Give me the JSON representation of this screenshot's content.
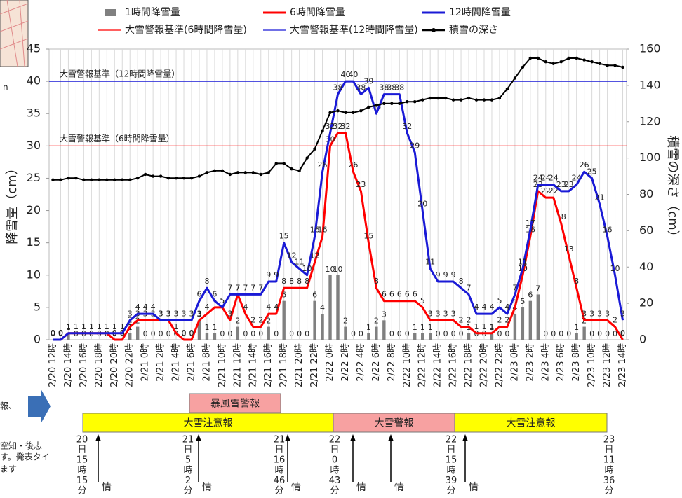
{
  "chart_data": {
    "type": "combo",
    "y_label": "降雪量（cm）",
    "y2_label": "積雪の深さ（cm）",
    "categories": [
      "2/20 12時",
      null,
      "2/20 14時",
      null,
      "2/20 16時",
      null,
      "2/20 18時",
      null,
      "2/20 20時",
      null,
      "2/20 22時",
      null,
      "2/21 0時",
      null,
      "2/21 2時",
      null,
      "2/21 4時",
      null,
      "2/21 6時",
      null,
      "2/21 8時",
      null,
      "2/21 10時",
      null,
      "2/21 12時",
      null,
      "2/21 14時",
      null,
      "2/21 16時",
      null,
      "2/21 18時",
      null,
      "2/21 20時",
      null,
      "2/21 22時",
      null,
      "2/22 0時",
      null,
      "2/22 2時",
      null,
      "2/22 4時",
      null,
      "2/22 6時",
      null,
      "2/22 8時",
      null,
      "2/22 10時",
      null,
      "2/22 12時",
      null,
      "2/22 14時",
      null,
      "2/22 16時",
      null,
      "2/22 18時",
      null,
      "2/22 20時",
      null,
      "2/22 22時",
      null,
      "2/23 0時",
      null,
      "2/23 2時",
      null,
      "2/23 4時",
      null,
      "2/23 6時",
      null,
      "2/23 8時",
      null,
      "2/23 10時",
      null,
      "2/23 12時",
      null,
      "2/23 14時"
    ],
    "series": [
      {
        "name": "1時間降雪量",
        "type": "bar",
        "color": "#808080",
        "label_color": "#333333",
        "values": [
          0,
          0,
          1,
          0,
          0,
          0,
          0,
          0,
          0,
          0,
          1,
          2,
          0,
          0,
          0,
          0,
          0,
          0,
          0,
          3,
          1,
          1,
          0,
          0,
          2,
          0,
          0,
          0,
          2,
          0,
          6,
          0,
          0,
          0,
          6,
          4,
          10,
          10,
          2,
          0,
          0,
          1,
          2,
          3,
          0,
          0,
          0,
          1,
          1,
          1,
          0,
          0,
          0,
          0,
          1,
          0,
          0,
          1,
          0,
          0,
          4,
          5,
          6,
          7,
          0,
          0,
          0,
          0,
          1,
          2,
          0,
          0,
          0,
          0,
          0
        ]
      },
      {
        "name": "6時間降雪量",
        "type": "line",
        "color": "#ff0000",
        "label_color": "#ff0000",
        "values": [
          0,
          0,
          1,
          1,
          1,
          1,
          1,
          1,
          0,
          0,
          2,
          3,
          3,
          3,
          3,
          3,
          1,
          0,
          0,
          3,
          4,
          5,
          5,
          3,
          7,
          4,
          2,
          2,
          4,
          4,
          8,
          8,
          8,
          8,
          12,
          16,
          30,
          32,
          32,
          26,
          23,
          15,
          8,
          6,
          6,
          6,
          6,
          6,
          5,
          3,
          3,
          3,
          3,
          2,
          2,
          1,
          1,
          1,
          2,
          2,
          5,
          10,
          16,
          23,
          22,
          22,
          18,
          13,
          8,
          3,
          3,
          3,
          3,
          2,
          0
        ]
      },
      {
        "name": "12時間降雪量",
        "type": "line",
        "color": "#1a1ad6",
        "label_color": "#2f9be8",
        "values": [
          0,
          0,
          1,
          1,
          1,
          1,
          1,
          1,
          1,
          1,
          3,
          4,
          4,
          4,
          3,
          3,
          3,
          3,
          3,
          6,
          8,
          6,
          5,
          7,
          7,
          7,
          7,
          7,
          9,
          9,
          15,
          12,
          11,
          10,
          16,
          26,
          32,
          38,
          40,
          40,
          38,
          39,
          35,
          38,
          38,
          38,
          32,
          29,
          20,
          11,
          9,
          9,
          9,
          8,
          7,
          4,
          4,
          4,
          5,
          4,
          7,
          11,
          17,
          24,
          24,
          24,
          23,
          23,
          24,
          26,
          25,
          21,
          16,
          10,
          3
        ]
      },
      {
        "name": "積雪の深さ",
        "type": "line",
        "axis": "y2",
        "color": "#000000",
        "markers": true,
        "values": [
          88,
          88,
          89,
          89,
          88,
          88,
          88,
          88,
          88,
          88,
          88,
          89,
          91,
          90,
          90,
          89,
          89,
          89,
          89,
          90,
          92,
          93,
          93,
          91,
          92,
          92,
          92,
          91,
          92,
          97,
          97,
          94,
          93,
          100,
          105,
          115,
          125,
          126,
          125,
          125,
          126,
          128,
          129,
          130,
          130,
          130,
          131,
          131,
          132,
          133,
          133,
          133,
          132,
          132,
          133,
          132,
          132,
          132,
          133,
          138,
          144,
          150,
          155,
          155,
          153,
          152,
          153,
          155,
          155,
          154,
          153,
          152,
          151,
          151,
          150
        ]
      }
    ],
    "reference_lines": [
      {
        "name": "大雪警報基準(6時間降雪量)",
        "label": "大雪警報基準（6時間降雪量）",
        "value": 30,
        "color": "#ff0000"
      },
      {
        "name": "大雪警報基準(12時間降雪量)",
        "label": "大雪警報基準（12時間降雪量）",
        "value": 40,
        "color": "#1a1ad6"
      }
    ],
    "ylim": [
      0,
      45
    ],
    "yticks": [
      0,
      5,
      10,
      15,
      20,
      25,
      30,
      35,
      40,
      45
    ],
    "y2lim": [
      0,
      160
    ],
    "y2ticks": [
      0,
      20,
      40,
      60,
      80,
      100,
      120,
      140,
      160
    ],
    "grid": "x"
  },
  "timeline": {
    "bands": [
      {
        "label": "暴風雪警報",
        "color": "#f7a1a1"
      },
      {
        "label": "大雪注意報",
        "color": "#ffff00"
      },
      {
        "label": "大雪警報",
        "color": "#f7a1a1"
      },
      {
        "label": "大雪注意報",
        "color": "#ffff00"
      }
    ],
    "times": [
      [
        "20",
        "日",
        "15",
        "時",
        "15",
        "分"
      ],
      [
        "21",
        "日",
        "5",
        "時",
        "2",
        "分"
      ],
      [
        "21",
        "日",
        "16",
        "時",
        "46",
        "分"
      ],
      [
        "22",
        "日",
        "0",
        "時",
        "43",
        "分"
      ],
      [
        "22",
        "日",
        "15",
        "時",
        "39",
        "分"
      ],
      [
        "23",
        "日",
        "11",
        "時",
        "36",
        "分"
      ]
    ],
    "info_labels": [
      "情",
      "情",
      "情",
      "情",
      "情",
      "情"
    ]
  },
  "side_notes": [
    "n",
    "報、",
    "空知・後志",
    "す。発表タイ",
    "ます"
  ]
}
